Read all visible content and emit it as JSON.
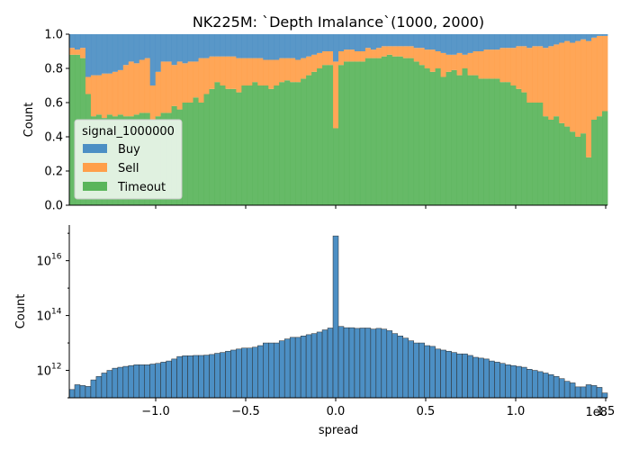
{
  "chart_data": [
    {
      "type": "area",
      "title": "NK225M: `Depth Imalance`(1000, 2000)",
      "xlabel": "",
      "ylabel": "Count",
      "xlim": [
        -148000000.0,
        151000000.0
      ],
      "ylim": [
        0,
        1.0
      ],
      "yticks": [
        "0.0",
        "0.2",
        "0.4",
        "0.6",
        "0.8",
        "1.0"
      ],
      "stacked": true,
      "normalized": true,
      "legend": {
        "title": "signal_1000000",
        "placement": "center-left",
        "entries": [
          "Buy",
          "Sell",
          "Timeout"
        ]
      },
      "x": [
        -147000000.0,
        -144000000.0,
        -141000000.0,
        -138000000.0,
        -135000000.0,
        -132000000.0,
        -129000000.0,
        -126000000.0,
        -123000000.0,
        -120000000.0,
        -117000000.0,
        -114000000.0,
        -111000000.0,
        -108000000.0,
        -105000000.0,
        -102000000.0,
        -99000000.0,
        -96000000.0,
        -93000000.0,
        -90000000.0,
        -87000000.0,
        -84000000.0,
        -81000000.0,
        -78000000.0,
        -75000000.0,
        -72000000.0,
        -69000000.0,
        -66000000.0,
        -63000000.0,
        -60000000.0,
        -57000000.0,
        -54000000.0,
        -51000000.0,
        -48000000.0,
        -45000000.0,
        -42000000.0,
        -39000000.0,
        -36000000.0,
        -33000000.0,
        -30000000.0,
        -27000000.0,
        -24000000.0,
        -21000000.0,
        -18000000.0,
        -15000000.0,
        -12000000.0,
        -9000000.0,
        -6000000.0,
        -3000000.0,
        0.0,
        3000000.0,
        6000000.0,
        9000000.0,
        12000000.0,
        15000000.0,
        18000000.0,
        21000000.0,
        24000000.0,
        27000000.0,
        30000000.0,
        33000000.0,
        36000000.0,
        39000000.0,
        42000000.0,
        45000000.0,
        48000000.0,
        51000000.0,
        54000000.0,
        57000000.0,
        60000000.0,
        63000000.0,
        66000000.0,
        69000000.0,
        72000000.0,
        75000000.0,
        78000000.0,
        81000000.0,
        84000000.0,
        87000000.0,
        90000000.0,
        93000000.0,
        96000000.0,
        99000000.0,
        102000000.0,
        105000000.0,
        108000000.0,
        111000000.0,
        114000000.0,
        117000000.0,
        120000000.0,
        123000000.0,
        126000000.0,
        129000000.0,
        132000000.0,
        135000000.0,
        138000000.0,
        141000000.0,
        144000000.0,
        147000000.0,
        150000000.0
      ],
      "series": [
        {
          "name": "Timeout",
          "color": "#5ab55b",
          "values": [
            0.88,
            0.88,
            0.86,
            0.65,
            0.52,
            0.53,
            0.51,
            0.53,
            0.52,
            0.53,
            0.52,
            0.52,
            0.53,
            0.54,
            0.54,
            0.5,
            0.52,
            0.54,
            0.54,
            0.58,
            0.56,
            0.6,
            0.6,
            0.63,
            0.6,
            0.65,
            0.68,
            0.72,
            0.7,
            0.68,
            0.68,
            0.66,
            0.7,
            0.7,
            0.72,
            0.7,
            0.7,
            0.68,
            0.7,
            0.72,
            0.73,
            0.72,
            0.72,
            0.74,
            0.76,
            0.78,
            0.8,
            0.82,
            0.82,
            0.45,
            0.82,
            0.84,
            0.84,
            0.84,
            0.84,
            0.86,
            0.86,
            0.86,
            0.87,
            0.88,
            0.87,
            0.87,
            0.86,
            0.86,
            0.84,
            0.82,
            0.8,
            0.78,
            0.8,
            0.75,
            0.78,
            0.79,
            0.76,
            0.8,
            0.76,
            0.76,
            0.74,
            0.74,
            0.74,
            0.74,
            0.72,
            0.72,
            0.7,
            0.68,
            0.66,
            0.6,
            0.6,
            0.6,
            0.52,
            0.5,
            0.52,
            0.48,
            0.46,
            0.43,
            0.4,
            0.42,
            0.28,
            0.5,
            0.52,
            0.55
          ]
        },
        {
          "name": "Sell",
          "color": "#ff9f4a",
          "values": [
            0.04,
            0.03,
            0.06,
            0.1,
            0.24,
            0.23,
            0.26,
            0.24,
            0.26,
            0.26,
            0.3,
            0.32,
            0.3,
            0.31,
            0.32,
            0.2,
            0.26,
            0.3,
            0.3,
            0.24,
            0.28,
            0.23,
            0.24,
            0.21,
            0.26,
            0.21,
            0.19,
            0.15,
            0.17,
            0.19,
            0.19,
            0.2,
            0.16,
            0.16,
            0.14,
            0.16,
            0.15,
            0.17,
            0.15,
            0.14,
            0.13,
            0.14,
            0.13,
            0.12,
            0.11,
            0.1,
            0.09,
            0.08,
            0.08,
            0.39,
            0.08,
            0.07,
            0.07,
            0.06,
            0.06,
            0.06,
            0.05,
            0.06,
            0.06,
            0.05,
            0.06,
            0.06,
            0.07,
            0.07,
            0.08,
            0.1,
            0.11,
            0.13,
            0.1,
            0.14,
            0.1,
            0.09,
            0.13,
            0.08,
            0.13,
            0.14,
            0.16,
            0.17,
            0.17,
            0.17,
            0.2,
            0.2,
            0.22,
            0.25,
            0.27,
            0.32,
            0.33,
            0.33,
            0.4,
            0.43,
            0.42,
            0.47,
            0.5,
            0.52,
            0.56,
            0.55,
            0.68,
            0.48,
            0.47,
            0.44
          ]
        },
        {
          "name": "Buy",
          "color": "#4c8fc4",
          "values": [
            0.08,
            0.09,
            0.08,
            0.25,
            0.24,
            0.24,
            0.23,
            0.23,
            0.22,
            0.21,
            0.18,
            0.16,
            0.17,
            0.15,
            0.14,
            0.3,
            0.22,
            0.16,
            0.16,
            0.18,
            0.16,
            0.17,
            0.16,
            0.16,
            0.14,
            0.14,
            0.13,
            0.13,
            0.13,
            0.13,
            0.13,
            0.14,
            0.14,
            0.14,
            0.14,
            0.14,
            0.15,
            0.15,
            0.15,
            0.14,
            0.14,
            0.14,
            0.15,
            0.14,
            0.13,
            0.12,
            0.11,
            0.1,
            0.1,
            0.16,
            0.1,
            0.09,
            0.09,
            0.1,
            0.1,
            0.08,
            0.09,
            0.08,
            0.07,
            0.07,
            0.07,
            0.07,
            0.07,
            0.07,
            0.08,
            0.08,
            0.09,
            0.09,
            0.1,
            0.11,
            0.12,
            0.12,
            0.11,
            0.12,
            0.11,
            0.1,
            0.1,
            0.09,
            0.09,
            0.09,
            0.08,
            0.08,
            0.08,
            0.07,
            0.07,
            0.08,
            0.07,
            0.07,
            0.08,
            0.07,
            0.06,
            0.05,
            0.04,
            0.05,
            0.04,
            0.03,
            0.04,
            0.02,
            0.01,
            0.01
          ]
        }
      ]
    },
    {
      "type": "bar",
      "title": "",
      "xlabel": "spread",
      "ylabel": "Count",
      "yscale": "log",
      "xlim": [
        -148000000.0,
        151000000.0
      ],
      "ylim": [
        100000000000.0,
        2e+17
      ],
      "xticks": [
        "−1.0",
        "−0.5",
        "0.0",
        "0.5",
        "1.0",
        "1.5"
      ],
      "xtick_values": [
        -100000000.0,
        -50000000.0,
        0.0,
        50000000.0,
        100000000.0,
        150000000.0
      ],
      "x_offset_label": "1e8",
      "yticks": [
        "10",
        "10",
        "10"
      ],
      "ytick_exponents": [
        "12",
        "14",
        "16"
      ],
      "ytick_values": [
        1000000000000.0,
        100000000000000.0,
        1e+16
      ],
      "series": [
        {
          "name": "",
          "color": "#4c8fc4",
          "values": [
            200000000000.0,
            300000000000.0,
            280000000000.0,
            260000000000.0,
            450000000000.0,
            600000000000.0,
            800000000000.0,
            1000000000000.0,
            1200000000000.0,
            1300000000000.0,
            1400000000000.0,
            1500000000000.0,
            1600000000000.0,
            1600000000000.0,
            1600000000000.0,
            1700000000000.0,
            1800000000000.0,
            2000000000000.0,
            2200000000000.0,
            2600000000000.0,
            3200000000000.0,
            3400000000000.0,
            3400000000000.0,
            3500000000000.0,
            3500000000000.0,
            3600000000000.0,
            3800000000000.0,
            4200000000000.0,
            4500000000000.0,
            5000000000000.0,
            5500000000000.0,
            6000000000000.0,
            6500000000000.0,
            6500000000000.0,
            7000000000000.0,
            8000000000000.0,
            10000000000000.0,
            10000000000000.0,
            10000000000000.0,
            12000000000000.0,
            14000000000000.0,
            16000000000000.0,
            16000000000000.0,
            18000000000000.0,
            20000000000000.0,
            22000000000000.0,
            25000000000000.0,
            30000000000000.0,
            35000000000000.0,
            8e+16,
            40000000000000.0,
            36000000000000.0,
            36000000000000.0,
            34000000000000.0,
            35000000000000.0,
            35000000000000.0,
            32000000000000.0,
            34000000000000.0,
            32000000000000.0,
            28000000000000.0,
            22000000000000.0,
            18000000000000.0,
            15000000000000.0,
            12000000000000.0,
            10000000000000.0,
            10000000000000.0,
            8000000000000.0,
            7500000000000.0,
            6000000000000.0,
            5500000000000.0,
            5000000000000.0,
            4500000000000.0,
            4000000000000.0,
            4000000000000.0,
            3500000000000.0,
            3000000000000.0,
            2800000000000.0,
            2600000000000.0,
            2200000000000.0,
            2000000000000.0,
            1800000000000.0,
            1600000000000.0,
            1500000000000.0,
            1400000000000.0,
            1300000000000.0,
            1100000000000.0,
            1000000000000.0,
            900000000000.0,
            800000000000.0,
            700000000000.0,
            600000000000.0,
            500000000000.0,
            400000000000.0,
            350000000000.0,
            250000000000.0,
            250000000000.0,
            300000000000.0,
            280000000000.0,
            240000000000.0,
            150000000000.0
          ]
        }
      ]
    }
  ]
}
